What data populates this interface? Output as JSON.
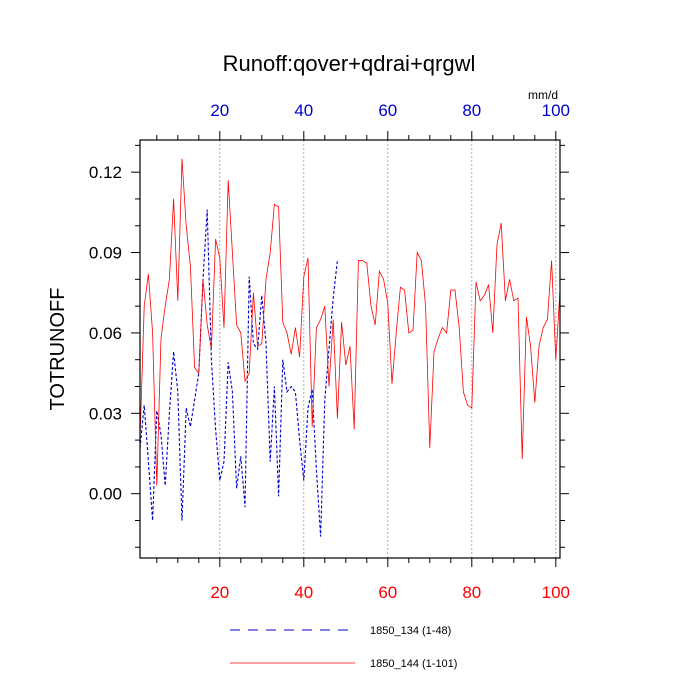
{
  "chart_data": {
    "type": "line",
    "title": "Runoff:qover+qdrai+qrgwl",
    "ylabel": "TOTRUNOFF",
    "units_label": "mm/d",
    "xlim": [
      1,
      101
    ],
    "ylim": [
      -0.024,
      0.132
    ],
    "x_ticks": [
      20,
      40,
      60,
      80,
      100
    ],
    "x_tick_labels": [
      "20",
      "40",
      "60",
      "80",
      "100"
    ],
    "top_tick_labels": [
      "20",
      "40",
      "60",
      "80",
      "100"
    ],
    "y_ticks": [
      0.0,
      0.03,
      0.06,
      0.09,
      0.12
    ],
    "y_tick_labels": [
      "0.00",
      "0.03",
      "0.06",
      "0.09",
      "0.12"
    ],
    "grid_x": true,
    "colors": {
      "bottom_axis": "#ff0000",
      "top_axis": "#0000cc",
      "frame": "#000000"
    },
    "series": [
      {
        "name": "1850_134 (1-48)",
        "color": "#0000cc",
        "dash": "dashed",
        "values": [
          0.017,
          0.033,
          0.012,
          -0.01,
          0.031,
          0.022,
          0.003,
          0.03,
          0.053,
          0.038,
          -0.01,
          0.032,
          0.025,
          0.035,
          0.045,
          0.08,
          0.106,
          0.05,
          0.024,
          0.005,
          0.012,
          0.049,
          0.038,
          0.002,
          0.014,
          -0.005,
          0.081,
          0.056,
          0.054,
          0.074,
          0.056,
          0.012,
          0.04,
          -0.001,
          0.05,
          0.038,
          0.04,
          0.038,
          0.02,
          0.005,
          0.032,
          0.039,
          0.009,
          -0.016,
          0.035,
          0.054,
          0.073,
          0.087
        ]
      },
      {
        "name": "1850_144 (1-101)",
        "color": "#ff0000",
        "dash": "solid",
        "values": [
          0.02,
          0.07,
          0.082,
          0.06,
          0.003,
          0.058,
          0.07,
          0.08,
          0.11,
          0.072,
          0.125,
          0.1,
          0.085,
          0.047,
          0.045,
          0.08,
          0.063,
          0.054,
          0.095,
          0.088,
          0.062,
          0.117,
          0.09,
          0.063,
          0.06,
          0.042,
          0.045,
          0.075,
          0.055,
          0.056,
          0.08,
          0.09,
          0.108,
          0.107,
          0.064,
          0.06,
          0.052,
          0.062,
          0.051,
          0.081,
          0.088,
          0.025,
          0.062,
          0.065,
          0.07,
          0.04,
          0.065,
          0.028,
          0.064,
          0.048,
          0.055,
          0.024,
          0.087,
          0.087,
          0.086,
          0.07,
          0.063,
          0.083,
          0.08,
          0.071,
          0.041,
          0.06,
          0.077,
          0.076,
          0.06,
          0.061,
          0.09,
          0.087,
          0.07,
          0.017,
          0.053,
          0.058,
          0.062,
          0.06,
          0.076,
          0.076,
          0.062,
          0.038,
          0.033,
          0.032,
          0.079,
          0.072,
          0.074,
          0.078,
          0.06,
          0.093,
          0.101,
          0.072,
          0.08,
          0.072,
          0.073,
          0.013,
          0.066,
          0.055,
          0.034,
          0.055,
          0.062,
          0.065,
          0.087,
          0.05,
          0.076
        ]
      }
    ]
  }
}
